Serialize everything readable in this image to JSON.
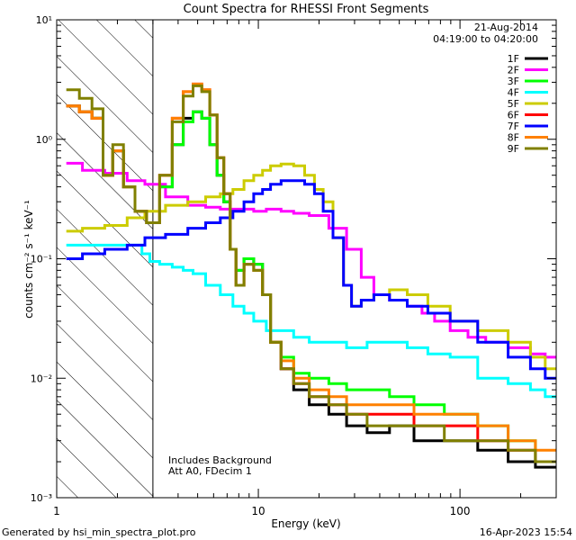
{
  "chart_data": {
    "type": "line",
    "title": "Count Spectra for RHESSI Front Segments",
    "xlabel": "Energy (keV)",
    "ylabel": "counts cm⁻² s⁻¹ keV⁻¹",
    "xscale": "log",
    "yscale": "log",
    "xlim": [
      1,
      300
    ],
    "ylim": [
      0.001,
      10
    ],
    "x_ticks": [
      {
        "value": 1,
        "label": "1"
      },
      {
        "value": 10,
        "label": "10"
      },
      {
        "value": 100,
        "label": "100"
      }
    ],
    "y_ticks": [
      {
        "value": 0.001,
        "label": "10⁻³"
      },
      {
        "value": 0.01,
        "label": "10⁻²"
      },
      {
        "value": 0.1,
        "label": "10⁻¹"
      },
      {
        "value": 1,
        "label": "10⁰"
      },
      {
        "value": 10,
        "label": "10¹"
      }
    ],
    "date": "21-Aug-2014",
    "time_range": "04:19:00 to 04:20:00",
    "hatched_region_kev": [
      1,
      3
    ],
    "annotations": [
      "Includes Background",
      "Att A0, FDecim 1"
    ],
    "footer_left": "Generated by hsi_min_spectra_plot.pro",
    "footer_right": "16-Apr-2023 15:54",
    "series": [
      {
        "name": "1F",
        "color": "#000000",
        "x": [
          1.2,
          1.4,
          1.6,
          1.8,
          2.0,
          2.3,
          2.6,
          3.0,
          3.5,
          4.0,
          4.5,
          5.0,
          5.5,
          6.0,
          6.5,
          7.0,
          7.5,
          8.0,
          9.0,
          10.0,
          11.0,
          12.0,
          14.0,
          16.0,
          20.0,
          25.0,
          30.0,
          40.0,
          50.0,
          70.0,
          100.0,
          150.0,
          200.0,
          280.0
        ],
        "y": [
          1.9,
          1.7,
          1.5,
          0.5,
          0.8,
          0.4,
          0.25,
          0.2,
          0.4,
          0.9,
          1.5,
          1.7,
          1.5,
          0.9,
          0.5,
          0.3,
          0.12,
          0.08,
          0.1,
          0.09,
          0.05,
          0.02,
          0.012,
          0.008,
          0.006,
          0.005,
          0.004,
          0.0035,
          0.004,
          0.003,
          0.003,
          0.0025,
          0.002,
          0.0018
        ]
      },
      {
        "name": "2F",
        "color": "#ff00ff",
        "x": [
          1.2,
          1.5,
          2.0,
          2.5,
          3.0,
          4.0,
          5.0,
          6.0,
          7.0,
          8.0,
          9.0,
          10.0,
          12.0,
          14.0,
          16.0,
          20.0,
          25.0,
          30.0,
          35.0,
          40.0,
          50.0,
          60.0,
          70.0,
          80.0,
          100.0,
          120.0,
          150.0,
          200.0,
          250.0,
          280.0
        ],
        "y": [
          0.63,
          0.55,
          0.52,
          0.45,
          0.42,
          0.33,
          0.28,
          0.27,
          0.26,
          0.26,
          0.26,
          0.25,
          0.26,
          0.25,
          0.24,
          0.23,
          0.18,
          0.12,
          0.07,
          0.05,
          0.045,
          0.04,
          0.035,
          0.03,
          0.025,
          0.022,
          0.02,
          0.018,
          0.016,
          0.015
        ]
      },
      {
        "name": "3F",
        "color": "#00ff00",
        "x": [
          1.2,
          1.4,
          1.6,
          1.8,
          2.0,
          2.3,
          2.6,
          3.0,
          3.5,
          4.0,
          4.5,
          5.0,
          5.5,
          6.0,
          6.5,
          7.0,
          7.5,
          8.0,
          9.0,
          10.0,
          11.0,
          12.0,
          14.0,
          16.0,
          20.0,
          25.0,
          30.0,
          40.0,
          50.0,
          70.0,
          100.0,
          150.0,
          200.0,
          280.0
        ],
        "y": [
          1.9,
          1.7,
          1.5,
          0.5,
          0.8,
          0.4,
          0.25,
          0.2,
          0.4,
          0.9,
          1.4,
          1.7,
          1.5,
          0.9,
          0.5,
          0.3,
          0.12,
          0.08,
          0.1,
          0.09,
          0.05,
          0.02,
          0.015,
          0.011,
          0.01,
          0.009,
          0.008,
          0.008,
          0.007,
          0.006,
          0.005,
          0.004,
          0.003,
          0.002
        ]
      },
      {
        "name": "4F",
        "color": "#00ffff",
        "x": [
          1.2,
          1.5,
          2.0,
          2.5,
          2.8,
          3.0,
          3.5,
          4.0,
          4.5,
          5.0,
          6.0,
          7.0,
          8.0,
          9.0,
          10.0,
          12.0,
          14.0,
          16.0,
          20.0,
          25.0,
          30.0,
          40.0,
          50.0,
          60.0,
          80.0,
          100.0,
          150.0,
          200.0,
          250.0,
          280.0
        ],
        "y": [
          0.13,
          0.13,
          0.13,
          0.13,
          0.11,
          0.095,
          0.09,
          0.085,
          0.08,
          0.075,
          0.06,
          0.05,
          0.04,
          0.035,
          0.03,
          0.025,
          0.025,
          0.022,
          0.02,
          0.02,
          0.018,
          0.02,
          0.02,
          0.018,
          0.016,
          0.015,
          0.01,
          0.009,
          0.008,
          0.007
        ]
      },
      {
        "name": "5F",
        "color": "#cccc00",
        "x": [
          1.2,
          1.5,
          2.0,
          2.5,
          3.0,
          4.0,
          5.0,
          6.0,
          7.0,
          8.0,
          9.0,
          10.0,
          11.0,
          12.0,
          14.0,
          16.0,
          18.0,
          20.0,
          22.0,
          25.0,
          28.0,
          30.0,
          35.0,
          40.0,
          50.0,
          60.0,
          80.0,
          100.0,
          150.0,
          200.0,
          250.0,
          280.0
        ],
        "y": [
          0.17,
          0.18,
          0.19,
          0.22,
          0.25,
          0.28,
          0.3,
          0.33,
          0.35,
          0.38,
          0.45,
          0.5,
          0.55,
          0.6,
          0.62,
          0.6,
          0.5,
          0.38,
          0.3,
          0.15,
          0.06,
          0.04,
          0.045,
          0.05,
          0.055,
          0.05,
          0.04,
          0.03,
          0.025,
          0.02,
          0.015,
          0.012
        ]
      },
      {
        "name": "6F",
        "color": "#ff0000",
        "x": [
          1.2,
          1.4,
          1.6,
          1.8,
          2.0,
          2.3,
          2.6,
          3.0,
          3.5,
          4.0,
          4.5,
          5.0,
          5.5,
          6.0,
          6.5,
          7.0,
          7.5,
          8.0,
          9.0,
          10.0,
          11.0,
          12.0,
          14.0,
          16.0,
          20.0,
          25.0,
          30.0,
          40.0,
          50.0,
          70.0,
          100.0,
          150.0,
          200.0,
          280.0
        ],
        "y": [
          1.9,
          1.7,
          1.5,
          0.5,
          0.8,
          0.4,
          0.25,
          0.2,
          0.5,
          1.5,
          2.5,
          2.9,
          2.6,
          1.6,
          0.7,
          0.35,
          0.12,
          0.06,
          0.09,
          0.08,
          0.05,
          0.02,
          0.012,
          0.009,
          0.007,
          0.006,
          0.005,
          0.005,
          0.005,
          0.004,
          0.004,
          0.003,
          0.0025,
          0.002
        ]
      },
      {
        "name": "7F",
        "color": "#0000ff",
        "x": [
          1.2,
          1.5,
          2.0,
          2.5,
          3.0,
          4.0,
          5.0,
          6.0,
          7.0,
          8.0,
          9.0,
          10.0,
          11.0,
          12.0,
          14.0,
          16.0,
          18.0,
          20.0,
          22.0,
          25.0,
          28.0,
          30.0,
          35.0,
          40.0,
          50.0,
          60.0,
          80.0,
          100.0,
          150.0,
          200.0,
          250.0,
          280.0
        ],
        "y": [
          0.1,
          0.11,
          0.12,
          0.13,
          0.15,
          0.16,
          0.18,
          0.2,
          0.22,
          0.25,
          0.3,
          0.35,
          0.38,
          0.42,
          0.45,
          0.45,
          0.42,
          0.35,
          0.25,
          0.15,
          0.06,
          0.04,
          0.045,
          0.05,
          0.045,
          0.04,
          0.035,
          0.03,
          0.02,
          0.015,
          0.012,
          0.01
        ]
      },
      {
        "name": "8F",
        "color": "#ff8000",
        "x": [
          1.2,
          1.4,
          1.6,
          1.8,
          2.0,
          2.3,
          2.6,
          3.0,
          3.5,
          4.0,
          4.5,
          5.0,
          5.5,
          6.0,
          6.5,
          7.0,
          7.5,
          8.0,
          9.0,
          10.0,
          11.0,
          12.0,
          14.0,
          16.0,
          20.0,
          25.0,
          30.0,
          40.0,
          50.0,
          70.0,
          100.0,
          150.0,
          200.0,
          280.0
        ],
        "y": [
          1.9,
          1.7,
          1.5,
          0.5,
          0.8,
          0.4,
          0.25,
          0.2,
          0.5,
          1.5,
          2.5,
          2.9,
          2.6,
          1.6,
          0.7,
          0.35,
          0.12,
          0.06,
          0.09,
          0.08,
          0.05,
          0.02,
          0.014,
          0.01,
          0.008,
          0.007,
          0.006,
          0.006,
          0.006,
          0.005,
          0.005,
          0.004,
          0.003,
          0.0025
        ]
      },
      {
        "name": "9F",
        "color": "#808000",
        "x": [
          1.2,
          1.4,
          1.6,
          1.8,
          2.0,
          2.3,
          2.6,
          3.0,
          3.5,
          4.0,
          4.5,
          5.0,
          5.5,
          6.0,
          6.5,
          7.0,
          7.5,
          8.0,
          9.0,
          10.0,
          11.0,
          12.0,
          14.0,
          16.0,
          20.0,
          25.0,
          30.0,
          40.0,
          50.0,
          70.0,
          100.0,
          150.0,
          200.0,
          280.0
        ],
        "y": [
          2.6,
          2.2,
          1.8,
          0.5,
          0.9,
          0.4,
          0.25,
          0.2,
          0.5,
          1.4,
          2.3,
          2.8,
          2.5,
          1.6,
          0.7,
          0.35,
          0.12,
          0.06,
          0.09,
          0.08,
          0.05,
          0.02,
          0.012,
          0.009,
          0.007,
          0.006,
          0.005,
          0.004,
          0.004,
          0.004,
          0.003,
          0.003,
          0.0025,
          0.002
        ]
      }
    ]
  }
}
